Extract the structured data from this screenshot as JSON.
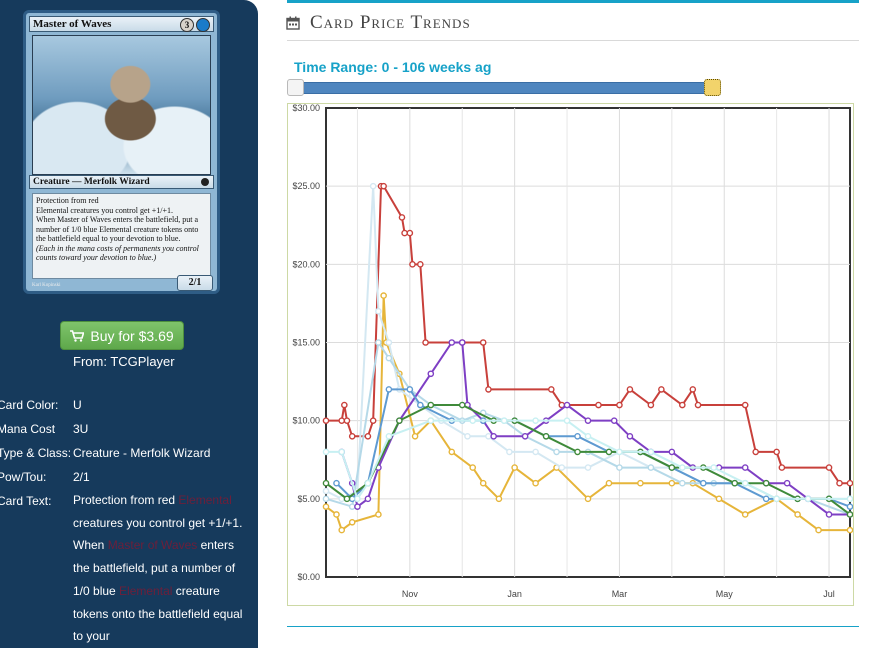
{
  "card": {
    "name": "Master of Waves",
    "mana_generic": "3",
    "mana_blue": "",
    "type_line": "Creature — Merfolk Wizard",
    "rules_1": "Protection from red",
    "rules_2": "Elemental creatures you control get +1/+1.",
    "rules_3": "When Master of Waves enters the battlefield, put a number of 1/0 blue Elemental creature tokens onto the battlefield equal to your devotion to blue.",
    "rules_reminder": "(Each  in the mana costs of permanents you control counts toward your devotion to blue.)",
    "pt": "2/1",
    "artist": "Karl Kopinski"
  },
  "buy": {
    "label": "Buy for $3.69",
    "from": "From: TCGPlayer"
  },
  "details": {
    "color_key": "Card Color:",
    "color_val": "U",
    "mana_key": "Mana Cost",
    "mana_val": "3U",
    "type_key": "Type & Class:",
    "type_val": "Creature - Merfolk Wizard",
    "pow_key": "Pow/Tou:",
    "pow_val": "2/1",
    "text_key": "Card Text:",
    "text_1": "Protection from red ",
    "text_link_1": "Elemental",
    "text_2": " creatures you control get +1/+1. When ",
    "text_link_2": "Master of Waves",
    "text_3": " enters the battlefield, put a number of 1/0 blue ",
    "text_link_3": "Elemental",
    "text_4": " creature tokens onto the battlefield equal to your"
  },
  "section": {
    "title": "Card Price Trends",
    "time_range": "Time Range: 0 - 106 weeks ag"
  },
  "colors": {
    "sidebar_bg": "#163a5c",
    "accent": "#17a2c8",
    "buy_green": "#5ea84b"
  },
  "chart_data": {
    "type": "line",
    "x_months": [
      "Nov",
      "Jan",
      "Mar",
      "May",
      "Jul"
    ],
    "y_ticks": [
      "$0.00",
      "$5.00",
      "$10.00",
      "$15.00",
      "$20.00",
      "$25.00",
      "$30.00"
    ],
    "ylim": [
      0,
      30
    ],
    "grid": true,
    "series": [
      {
        "color": "#c8403b",
        "points": [
          [
            0.0,
            10
          ],
          [
            0.03,
            10
          ],
          [
            0.035,
            11
          ],
          [
            0.04,
            10
          ],
          [
            0.05,
            9
          ],
          [
            0.08,
            9
          ],
          [
            0.09,
            10
          ],
          [
            0.105,
            25
          ],
          [
            0.11,
            25
          ],
          [
            0.145,
            23
          ],
          [
            0.15,
            22
          ],
          [
            0.16,
            22
          ],
          [
            0.165,
            20
          ],
          [
            0.18,
            20
          ],
          [
            0.19,
            15
          ],
          [
            0.26,
            15
          ],
          [
            0.3,
            15
          ],
          [
            0.31,
            12
          ],
          [
            0.43,
            12
          ],
          [
            0.45,
            11
          ],
          [
            0.52,
            11
          ],
          [
            0.56,
            11
          ],
          [
            0.58,
            12
          ],
          [
            0.62,
            11
          ],
          [
            0.64,
            12
          ],
          [
            0.68,
            11
          ],
          [
            0.7,
            12
          ],
          [
            0.71,
            11
          ],
          [
            0.8,
            11
          ],
          [
            0.82,
            8
          ],
          [
            0.86,
            8
          ],
          [
            0.87,
            7
          ],
          [
            0.96,
            7
          ],
          [
            0.98,
            6
          ],
          [
            1.0,
            6
          ]
        ]
      },
      {
        "color": "#e6b53a",
        "points": [
          [
            0.0,
            4.5
          ],
          [
            0.02,
            4
          ],
          [
            0.03,
            3
          ],
          [
            0.05,
            3.5
          ],
          [
            0.1,
            4
          ],
          [
            0.11,
            18
          ],
          [
            0.115,
            15
          ],
          [
            0.14,
            13
          ],
          [
            0.17,
            9
          ],
          [
            0.2,
            10
          ],
          [
            0.24,
            8
          ],
          [
            0.28,
            7
          ],
          [
            0.3,
            6
          ],
          [
            0.33,
            5
          ],
          [
            0.36,
            7
          ],
          [
            0.4,
            6
          ],
          [
            0.44,
            7
          ],
          [
            0.5,
            5
          ],
          [
            0.54,
            6
          ],
          [
            0.6,
            6
          ],
          [
            0.66,
            6
          ],
          [
            0.7,
            6
          ],
          [
            0.75,
            5
          ],
          [
            0.8,
            4
          ],
          [
            0.86,
            5
          ],
          [
            0.9,
            4
          ],
          [
            0.94,
            3
          ],
          [
            1.0,
            3
          ]
        ]
      },
      {
        "color": "#d4e8f2",
        "points": [
          [
            0.0,
            5.5
          ],
          [
            0.03,
            5
          ],
          [
            0.06,
            5.5
          ],
          [
            0.09,
            25
          ],
          [
            0.1,
            17
          ],
          [
            0.12,
            15
          ],
          [
            0.14,
            12
          ],
          [
            0.18,
            11
          ],
          [
            0.22,
            10
          ],
          [
            0.27,
            9
          ],
          [
            0.31,
            9
          ],
          [
            0.35,
            8
          ],
          [
            0.4,
            8
          ],
          [
            0.45,
            7
          ],
          [
            0.5,
            7
          ],
          [
            0.56,
            8
          ],
          [
            0.62,
            7
          ],
          [
            0.66,
            7
          ],
          [
            0.72,
            6
          ],
          [
            0.78,
            6
          ],
          [
            0.84,
            5
          ],
          [
            0.9,
            5
          ],
          [
            0.96,
            5
          ],
          [
            1.0,
            5
          ]
        ]
      },
      {
        "color": "#b5d9e8",
        "points": [
          [
            0.0,
            5
          ],
          [
            0.05,
            4.5
          ],
          [
            0.1,
            15
          ],
          [
            0.12,
            14
          ],
          [
            0.16,
            12
          ],
          [
            0.2,
            11
          ],
          [
            0.26,
            10
          ],
          [
            0.3,
            10.5
          ],
          [
            0.34,
            10
          ],
          [
            0.38,
            9
          ],
          [
            0.44,
            8
          ],
          [
            0.5,
            8
          ],
          [
            0.56,
            7
          ],
          [
            0.62,
            7
          ],
          [
            0.68,
            6
          ],
          [
            0.74,
            6
          ],
          [
            0.8,
            6
          ],
          [
            0.86,
            5
          ],
          [
            0.92,
            5
          ],
          [
            1.0,
            4
          ]
        ]
      },
      {
        "color": "#7e3fc4",
        "points": [
          [
            0.03,
            8
          ],
          [
            0.05,
            6
          ],
          [
            0.06,
            4.5
          ],
          [
            0.08,
            5
          ],
          [
            0.1,
            7
          ],
          [
            0.14,
            10
          ],
          [
            0.2,
            13
          ],
          [
            0.24,
            15
          ],
          [
            0.26,
            15
          ],
          [
            0.27,
            11
          ],
          [
            0.3,
            10
          ],
          [
            0.32,
            9
          ],
          [
            0.38,
            9
          ],
          [
            0.42,
            10
          ],
          [
            0.46,
            11
          ],
          [
            0.5,
            10
          ],
          [
            0.55,
            10
          ],
          [
            0.58,
            9
          ],
          [
            0.62,
            8
          ],
          [
            0.66,
            8
          ],
          [
            0.7,
            7
          ],
          [
            0.75,
            7
          ],
          [
            0.8,
            7
          ],
          [
            0.84,
            6
          ],
          [
            0.88,
            6
          ],
          [
            0.92,
            5
          ],
          [
            0.96,
            4
          ],
          [
            1.0,
            4
          ]
        ]
      },
      {
        "color": "#5e9ad1",
        "points": [
          [
            0.02,
            6
          ],
          [
            0.05,
            5
          ],
          [
            0.08,
            6
          ],
          [
            0.12,
            12
          ],
          [
            0.16,
            12
          ],
          [
            0.18,
            11
          ],
          [
            0.24,
            10
          ],
          [
            0.3,
            10
          ],
          [
            0.36,
            10
          ],
          [
            0.42,
            9
          ],
          [
            0.48,
            9
          ],
          [
            0.54,
            8
          ],
          [
            0.6,
            8
          ],
          [
            0.66,
            7
          ],
          [
            0.72,
            6
          ],
          [
            0.78,
            6
          ],
          [
            0.84,
            5
          ],
          [
            0.9,
            5
          ],
          [
            0.96,
            5
          ],
          [
            1.0,
            4.5
          ]
        ]
      },
      {
        "color": "#3f8a3a",
        "points": [
          [
            0.0,
            6
          ],
          [
            0.04,
            5
          ],
          [
            0.08,
            6
          ],
          [
            0.14,
            10
          ],
          [
            0.2,
            11
          ],
          [
            0.26,
            11
          ],
          [
            0.32,
            10
          ],
          [
            0.36,
            10
          ],
          [
            0.42,
            9
          ],
          [
            0.48,
            8
          ],
          [
            0.54,
            8
          ],
          [
            0.6,
            8
          ],
          [
            0.66,
            7
          ],
          [
            0.72,
            7
          ],
          [
            0.78,
            6
          ],
          [
            0.84,
            6
          ],
          [
            0.9,
            5
          ],
          [
            0.96,
            5
          ],
          [
            1.0,
            4
          ]
        ]
      },
      {
        "color": "#c7f0f2",
        "points": [
          [
            0.0,
            8
          ],
          [
            0.03,
            8
          ],
          [
            0.06,
            5
          ],
          [
            0.08,
            6
          ],
          [
            0.12,
            9
          ],
          [
            0.2,
            10
          ],
          [
            0.28,
            10
          ],
          [
            0.34,
            10
          ],
          [
            0.4,
            10
          ],
          [
            0.46,
            10
          ],
          [
            0.5,
            9
          ],
          [
            0.56,
            8
          ],
          [
            0.62,
            8
          ],
          [
            0.68,
            7
          ],
          [
            0.74,
            7
          ],
          [
            0.8,
            6
          ],
          [
            0.86,
            5
          ],
          [
            0.92,
            5
          ],
          [
            1.0,
            5
          ]
        ]
      }
    ]
  }
}
